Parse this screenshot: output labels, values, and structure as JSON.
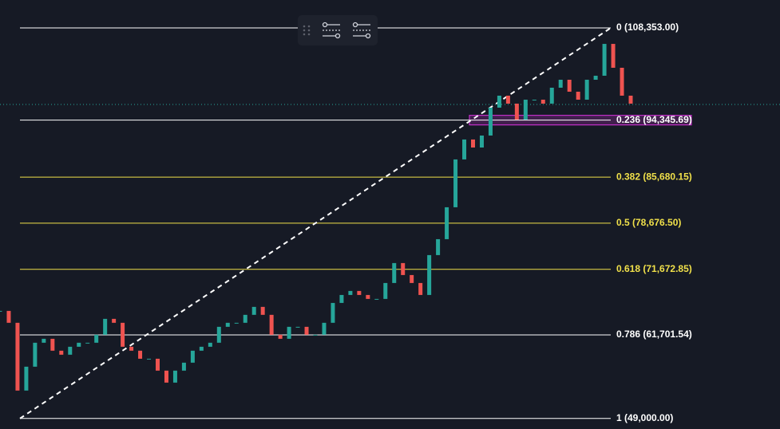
{
  "chart_data": {
    "type": "candlestick",
    "ylim": [
      47400,
      112600
    ],
    "series": [
      {
        "color": "#26a69a",
        "down_color": "#ef5350",
        "values": [
          65350,
          63540,
          53240,
          56870,
          60510,
          61110,
          59300,
          58690,
          59900,
          60510,
          60510,
          61720,
          64140,
          63540,
          59900,
          59300,
          58080,
          58080,
          56270,
          54450,
          56270,
          57480,
          59300,
          59900,
          60510,
          62930,
          63540,
          63540,
          64750,
          65960,
          64750,
          61720,
          61110,
          62930,
          62930,
          61720,
          61720,
          63540,
          66560,
          67770,
          68380,
          67770,
          67170,
          67170,
          69590,
          72620,
          70800,
          69590,
          67770,
          73830,
          76250,
          81100,
          88370,
          91400,
          90180,
          92000,
          96240,
          98060,
          96850,
          94420,
          97450,
          97450,
          96850,
          99270,
          100480,
          98660,
          97450,
          100480,
          101090,
          105930,
          102300,
          98060,
          96850
        ]
      }
    ],
    "price_line": 96725,
    "levels": [
      {
        "label": "0 (108,353.00)",
        "value": 108353,
        "color": "#ffffff"
      },
      {
        "label": "0.236 (94,345.69)",
        "value": 94345.69,
        "color": "#ffffff",
        "highlight": "#c330c9"
      },
      {
        "label": "0.382 (85,680.15)",
        "value": 85680.15,
        "color": "#f0e04a"
      },
      {
        "label": "0.5 (78,676.50)",
        "value": 78676.5,
        "color": "#f0e04a"
      },
      {
        "label": "0.618 (71,672.85)",
        "value": 71672.85,
        "color": "#f0e04a"
      },
      {
        "label": "0.786 (61,701.54)",
        "value": 61701.54,
        "color": "#ffffff"
      },
      {
        "label": "1 (49,000.00)",
        "value": 49000,
        "color": "#ffffff"
      }
    ]
  }
}
